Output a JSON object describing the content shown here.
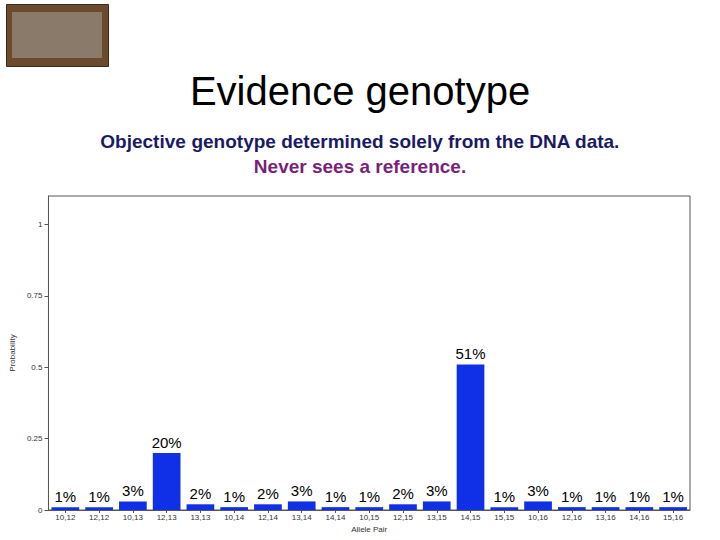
{
  "chart_data": {
    "type": "bar",
    "title": "Evidence genotype",
    "subtitle": [
      "Objective genotype determined solely from the DNA data.",
      "Never sees a reference."
    ],
    "x_label": "Allele Pair",
    "y_label": "Probability",
    "categories": [
      "10,12",
      "12,12",
      "10,13",
      "12,13",
      "13,13",
      "10,14",
      "12,14",
      "13,14",
      "14,14",
      "10,15",
      "12,15",
      "13,15",
      "14,15",
      "15,15",
      "10,16",
      "12,16",
      "13,16",
      "14,16",
      "15,16"
    ],
    "values": [
      0.01,
      0.01,
      0.03,
      0.2,
      0.02,
      0.01,
      0.02,
      0.03,
      0.01,
      0.01,
      0.02,
      0.03,
      0.51,
      0.01,
      0.03,
      0.01,
      0.01,
      0.01,
      0.01
    ],
    "value_labels": [
      "1%",
      "1%",
      "3%",
      "20%",
      "2%",
      "1%",
      "2%",
      "3%",
      "1%",
      "1%",
      "2%",
      "3%",
      "51%",
      "1%",
      "3%",
      "1%",
      "1%",
      "1%",
      "1%"
    ],
    "color": "#1030e8",
    "ylim": [
      0,
      1.1
    ],
    "yticks": [
      0,
      0.25,
      0.5,
      0.75,
      1
    ],
    "grid": false,
    "data_labels": true
  }
}
